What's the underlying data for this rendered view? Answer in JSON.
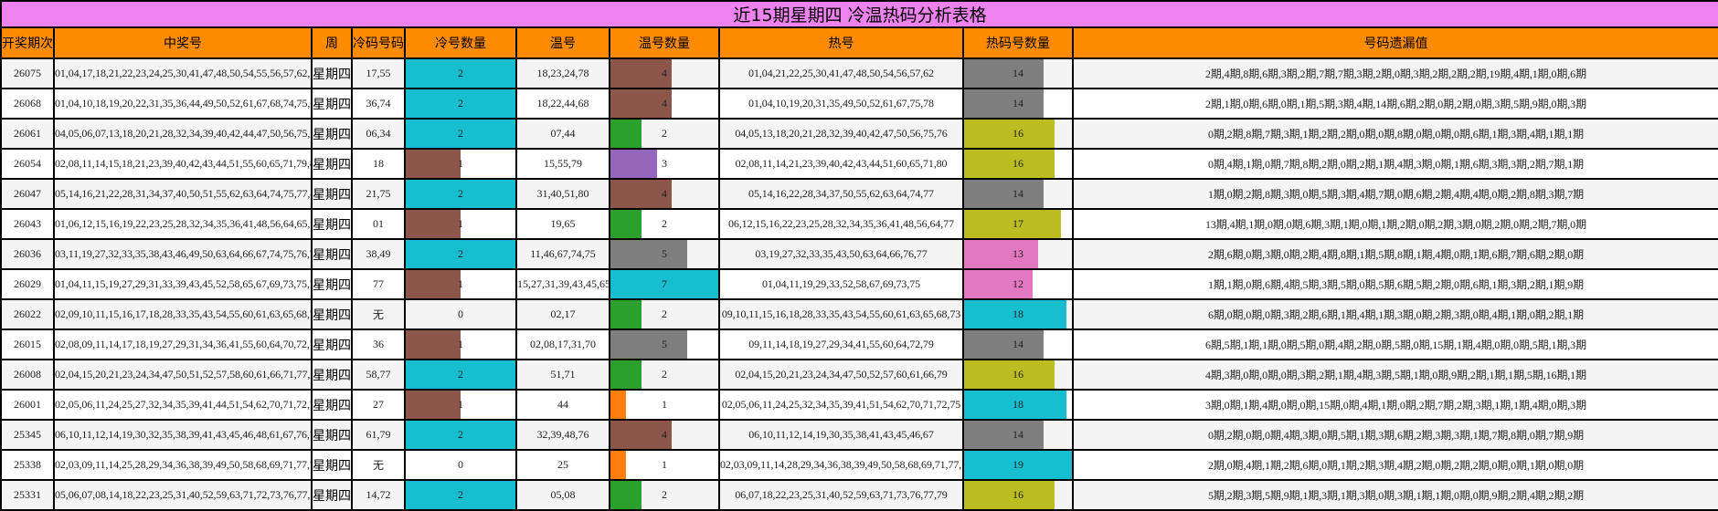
{
  "title": "近15期星期四 冷温热码分析表格",
  "headers": [
    "开奖期次",
    "中奖号",
    "周",
    "冷码号码",
    "冷号数量",
    "温号",
    "温号数量",
    "热号",
    "热码号数量",
    "号码遗漏值"
  ],
  "colors": {
    "title_bg": "#ee82ee",
    "header_bg": "#ff8c00",
    "cyan": "#17becf",
    "brown": "#8c564b",
    "green": "#2ca02c",
    "purple": "#9467bd",
    "gray": "#7f7f7f",
    "olive": "#bcbd22",
    "pink": "#e377c2",
    "orange": "#ff7f0e"
  },
  "rows": [
    {
      "period": "26075",
      "numbers": "01,04,17,18,21,22,23,24,25,30,41,47,48,50,54,55,56,57,62,78",
      "week": "星期四",
      "cold": "17,55",
      "cold_count": "2",
      "warm": "18,23,24,78",
      "warm_count": "4",
      "hot": "01,04,21,22,25,30,41,47,48,50,54,56,57,62",
      "hot_count": "14",
      "missing": "2期,4期,8期,6期,3期,2期,7期,7期,3期,2期,0期,3期,2期,2期,2期,19期,4期,1期,0期,6期"
    },
    {
      "period": "26068",
      "numbers": "01,04,10,18,19,20,22,31,35,36,44,49,50,52,61,67,68,74,75,78",
      "week": "星期四",
      "cold": "36,74",
      "cold_count": "2",
      "warm": "18,22,44,68",
      "warm_count": "4",
      "hot": "01,04,10,19,20,31,35,49,50,52,61,67,75,78",
      "hot_count": "14",
      "missing": "2期,1期,0期,6期,0期,1期,5期,3期,4期,14期,6期,2期,0期,2期,0期,3期,5期,9期,0期,3期"
    },
    {
      "period": "26061",
      "numbers": "04,05,06,07,13,18,20,21,28,32,34,39,40,42,44,47,50,56,75,76",
      "week": "星期四",
      "cold": "06,34",
      "cold_count": "2",
      "warm": "07,44",
      "warm_count": "2",
      "hot": "04,05,13,18,20,21,28,32,39,40,42,47,50,56,75,76",
      "hot_count": "16",
      "missing": "0期,2期,8期,7期,3期,1期,2期,2期,0期,0期,8期,0期,0期,0期,6期,1期,3期,4期,1期,1期"
    },
    {
      "period": "26054",
      "numbers": "02,08,11,14,15,18,21,23,39,40,42,43,44,51,55,60,65,71,79,80",
      "week": "星期四",
      "cold": "18",
      "cold_count": "1",
      "warm": "15,55,79",
      "warm_count": "3",
      "hot": "02,08,11,14,21,23,39,40,42,43,44,51,60,65,71,80",
      "hot_count": "16",
      "missing": "0期,4期,1期,0期,7期,8期,2期,0期,2期,1期,4期,3期,0期,1期,6期,3期,3期,2期,7期,1期"
    },
    {
      "period": "26047",
      "numbers": "05,14,16,21,22,28,31,34,37,40,50,51,55,62,63,64,74,75,77,80",
      "week": "星期四",
      "cold": "21,75",
      "cold_count": "2",
      "warm": "31,40,51,80",
      "warm_count": "4",
      "hot": "05,14,16,22,28,34,37,50,55,62,63,64,74,77",
      "hot_count": "14",
      "missing": "1期,0期,2期,8期,3期,0期,5期,3期,4期,7期,0期,6期,2期,4期,4期,0期,2期,8期,3期,7期"
    },
    {
      "period": "26043",
      "numbers": "01,06,12,15,16,19,22,23,25,28,32,34,35,36,41,48,56,64,65,77",
      "week": "星期四",
      "cold": "01",
      "cold_count": "1",
      "warm": "19,65",
      "warm_count": "2",
      "hot": "06,12,15,16,22,23,25,28,32,34,35,36,41,48,56,64,77",
      "hot_count": "17",
      "missing": "13期,4期,1期,0期,0期,6期,3期,1期,0期,1期,2期,0期,2期,3期,0期,2期,0期,2期,7期,0期"
    },
    {
      "period": "26036",
      "numbers": "03,11,19,27,32,33,35,38,43,46,49,50,63,64,66,67,74,75,76,77",
      "week": "星期四",
      "cold": "38,49",
      "cold_count": "2",
      "warm": "11,46,67,74,75",
      "warm_count": "5",
      "hot": "03,19,27,32,33,35,43,50,63,64,66,76,77",
      "hot_count": "13",
      "missing": "2期,6期,0期,3期,0期,2期,4期,8期,1期,5期,8期,1期,4期,0期,1期,6期,7期,6期,2期,0期"
    },
    {
      "period": "26029",
      "numbers": "01,04,11,15,19,27,29,31,33,39,43,45,52,58,65,67,69,73,75,77",
      "week": "星期四",
      "cold": "77",
      "cold_count": "1",
      "warm": "15,27,31,39,43,45,65",
      "warm_count": "7",
      "hot": "01,04,11,19,29,33,52,58,67,69,73,75",
      "hot_count": "12",
      "missing": "1期,1期,0期,6期,4期,5期,3期,5期,0期,5期,6期,5期,2期,0期,6期,1期,3期,2期,1期,9期"
    },
    {
      "period": "26022",
      "numbers": "02,09,10,11,15,16,17,18,28,33,35,43,54,55,60,61,63,65,68,73",
      "week": "星期四",
      "cold": "无",
      "cold_count": "0",
      "warm": "02,17",
      "warm_count": "2",
      "hot": "09,10,11,15,16,18,28,33,35,43,54,55,60,61,63,65,68,73",
      "hot_count": "18",
      "missing": "6期,0期,0期,0期,3期,2期,6期,1期,4期,1期,3期,0期,2期,3期,0期,4期,1期,0期,2期,1期"
    },
    {
      "period": "26015",
      "numbers": "02,08,09,11,14,17,18,19,27,29,31,34,36,41,55,60,64,70,72,79",
      "week": "星期四",
      "cold": "36",
      "cold_count": "1",
      "warm": "02,08,17,31,70",
      "warm_count": "5",
      "hot": "09,11,14,18,19,27,29,34,41,55,60,64,72,79",
      "hot_count": "14",
      "missing": "6期,5期,1期,1期,0期,5期,0期,4期,2期,0期,5期,0期,15期,1期,4期,0期,0期,5期,1期,3期"
    },
    {
      "period": "26008",
      "numbers": "02,04,15,20,21,23,24,34,47,50,51,52,57,58,60,61,66,71,77,79",
      "week": "星期四",
      "cold": "58,77",
      "cold_count": "2",
      "warm": "51,71",
      "warm_count": "2",
      "hot": "02,04,15,20,21,23,24,34,47,50,52,57,60,61,66,79",
      "hot_count": "16",
      "missing": "4期,3期,0期,0期,0期,3期,2期,1期,4期,3期,5期,1期,0期,9期,2期,1期,1期,5期,16期,1期"
    },
    {
      "period": "26001",
      "numbers": "02,05,06,11,24,25,27,32,34,35,39,41,44,51,54,62,70,71,72,75",
      "week": "星期四",
      "cold": "27",
      "cold_count": "1",
      "warm": "44",
      "warm_count": "1",
      "hot": "02,05,06,11,24,25,32,34,35,39,41,51,54,62,70,71,72,75",
      "hot_count": "18",
      "missing": "3期,0期,1期,4期,0期,0期,15期,0期,4期,1期,0期,2期,7期,2期,3期,1期,1期,4期,0期,3期"
    },
    {
      "period": "25345",
      "numbers": "06,10,11,12,14,19,30,32,35,38,39,41,43,45,46,48,61,67,76,79",
      "week": "星期四",
      "cold": "61,79",
      "cold_count": "2",
      "warm": "32,39,48,76",
      "warm_count": "4",
      "hot": "06,10,11,12,14,19,30,35,38,41,43,45,46,67",
      "hot_count": "14",
      "missing": "0期,2期,0期,0期,4期,3期,0期,5期,1期,3期,6期,2期,3期,3期,1期,7期,8期,0期,7期,9期"
    },
    {
      "period": "25338",
      "numbers": "02,03,09,11,14,25,28,29,34,36,38,39,49,50,58,68,69,71,77,78",
      "week": "星期四",
      "cold": "无",
      "cold_count": "0",
      "warm": "25",
      "warm_count": "1",
      "hot": "02,03,09,11,14,28,29,34,36,38,39,49,50,58,68,69,71,77,78",
      "hot_count": "19",
      "missing": "2期,0期,4期,1期,2期,6期,0期,1期,2期,3期,4期,2期,0期,2期,2期,0期,0期,1期,0期,0期"
    },
    {
      "period": "25331",
      "numbers": "05,06,07,08,14,18,22,23,25,31,40,52,59,63,71,72,73,76,77,79",
      "week": "星期四",
      "cold": "14,72",
      "cold_count": "2",
      "warm": "05,08",
      "warm_count": "2",
      "hot": "06,07,18,22,23,25,31,40,52,59,63,71,73,76,77,79",
      "hot_count": "16",
      "missing": "5期,2期,3期,5期,9期,1期,3期,1期,3期,0期,3期,1期,1期,0期,0期,9期,2期,4期,2期,2期"
    }
  ],
  "bars": {
    "cold_max": 2,
    "warm_max": 7,
    "hot_max": 19,
    "cold_colors": {
      "0": "",
      "1": "#8c564b",
      "2": "#17becf"
    },
    "warm_colors": {
      "1": "#ff7f0e",
      "2": "#2ca02c",
      "3": "#9467bd",
      "4": "#8c564b",
      "5": "#7f7f7f",
      "7": "#17becf"
    },
    "hot_colors": {
      "12": "#e377c2",
      "13": "#e377c2",
      "14": "#7f7f7f",
      "16": "#bcbd22",
      "17": "#bcbd22",
      "18": "#17becf",
      "19": "#17becf"
    }
  }
}
